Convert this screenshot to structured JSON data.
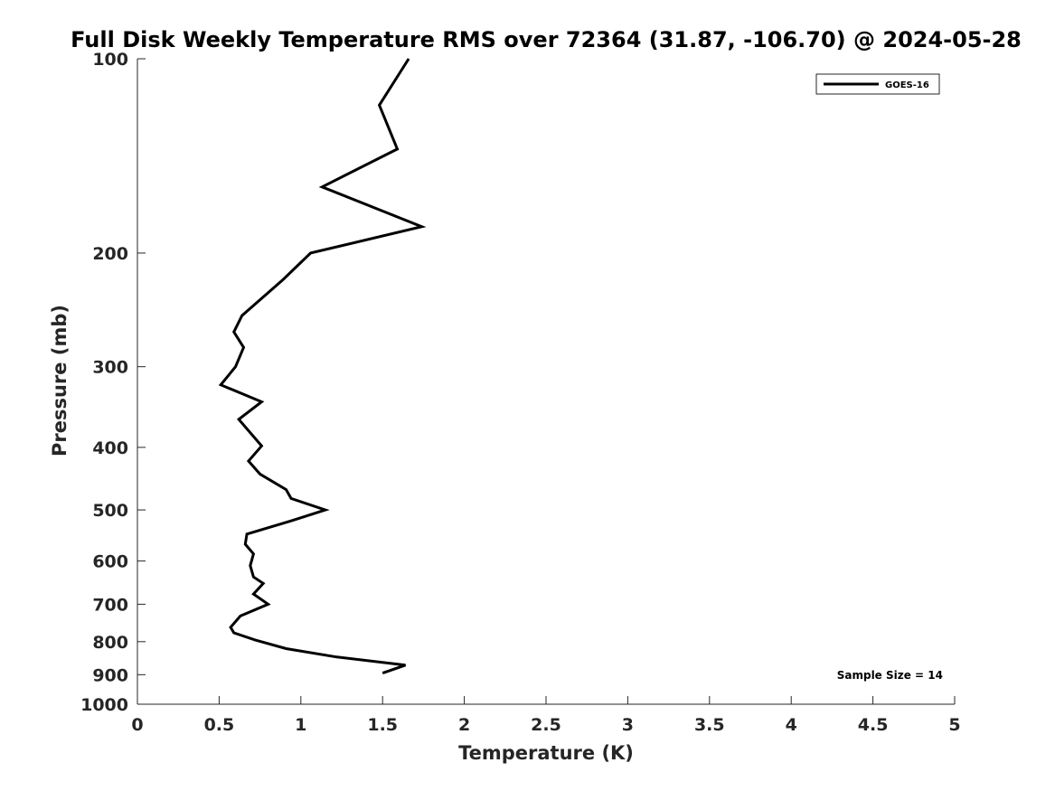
{
  "chart_data": {
    "type": "line",
    "title": "Full Disk Weekly Temperature RMS over 72364 (31.87, -106.70) @ 2024-05-28",
    "xlabel": "Temperature (K)",
    "ylabel": "Pressure (mb)",
    "xlim": [
      0,
      5
    ],
    "ylim": [
      1000,
      100
    ],
    "yscale": "log",
    "y_reversed": true,
    "grid": false,
    "legend_position": "top-right",
    "x_ticks": [
      0,
      0.5,
      1,
      1.5,
      2,
      2.5,
      3,
      3.5,
      4,
      4.5,
      5
    ],
    "x_tick_labels": [
      "0",
      "0.5",
      "1",
      "1.5",
      "2",
      "2.5",
      "3",
      "3.5",
      "4",
      "4.5",
      "5"
    ],
    "y_ticks": [
      100,
      200,
      300,
      400,
      500,
      600,
      700,
      800,
      900,
      1000
    ],
    "y_tick_labels": [
      "100",
      "200",
      "300",
      "400",
      "500",
      "600",
      "700",
      "800",
      "900",
      "1000"
    ],
    "annotation": "Sample Size = 14",
    "series": [
      {
        "name": "GOES-16",
        "color": "#000000",
        "points": [
          {
            "x": 1.66,
            "p": 100
          },
          {
            "x": 1.48,
            "p": 118
          },
          {
            "x": 1.59,
            "p": 138
          },
          {
            "x": 1.13,
            "p": 158
          },
          {
            "x": 1.74,
            "p": 182
          },
          {
            "x": 1.06,
            "p": 200
          },
          {
            "x": 0.89,
            "p": 220
          },
          {
            "x": 0.64,
            "p": 250
          },
          {
            "x": 0.59,
            "p": 265
          },
          {
            "x": 0.65,
            "p": 280
          },
          {
            "x": 0.6,
            "p": 300
          },
          {
            "x": 0.51,
            "p": 320
          },
          {
            "x": 0.76,
            "p": 340
          },
          {
            "x": 0.62,
            "p": 362
          },
          {
            "x": 0.76,
            "p": 398
          },
          {
            "x": 0.68,
            "p": 420
          },
          {
            "x": 0.75,
            "p": 440
          },
          {
            "x": 0.91,
            "p": 465
          },
          {
            "x": 0.94,
            "p": 480
          },
          {
            "x": 1.15,
            "p": 500
          },
          {
            "x": 0.94,
            "p": 520
          },
          {
            "x": 0.67,
            "p": 545
          },
          {
            "x": 0.66,
            "p": 565
          },
          {
            "x": 0.71,
            "p": 585
          },
          {
            "x": 0.69,
            "p": 610
          },
          {
            "x": 0.71,
            "p": 635
          },
          {
            "x": 0.77,
            "p": 650
          },
          {
            "x": 0.71,
            "p": 675
          },
          {
            "x": 0.8,
            "p": 700
          },
          {
            "x": 0.63,
            "p": 730
          },
          {
            "x": 0.57,
            "p": 760
          },
          {
            "x": 0.59,
            "p": 775
          },
          {
            "x": 0.72,
            "p": 795
          },
          {
            "x": 0.91,
            "p": 820
          },
          {
            "x": 1.22,
            "p": 845
          },
          {
            "x": 1.64,
            "p": 870
          },
          {
            "x": 1.5,
            "p": 895
          }
        ]
      }
    ]
  }
}
